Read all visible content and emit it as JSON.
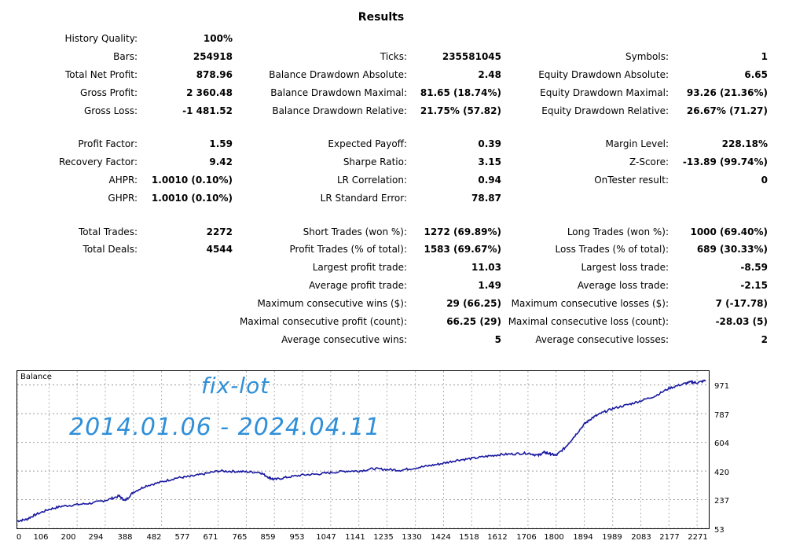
{
  "title": "Results",
  "stats": [
    {
      "label": "History Quality:",
      "value": "100%"
    },
    {
      "label": "Bars:",
      "value": "254918"
    },
    {
      "label": "Total Net Profit:",
      "value": "878.96"
    },
    {
      "label": "Gross Profit:",
      "value": "2 360.48"
    },
    {
      "label": "Gross Loss:",
      "value": "-1 481.52"
    },
    {
      "label": "Profit Factor:",
      "value": "1.59"
    },
    {
      "label": "Recovery Factor:",
      "value": "9.42"
    },
    {
      "label": "AHPR:",
      "value": "1.0010 (0.10%)"
    },
    {
      "label": "GHPR:",
      "value": "1.0010 (0.10%)"
    },
    {
      "label": "Total Trades:",
      "value": "2272"
    },
    {
      "label": "Total Deals:",
      "value": "4544"
    },
    {
      "label": "Ticks:",
      "value": "235581045"
    },
    {
      "label": "Balance Drawdown Absolute:",
      "value": "2.48"
    },
    {
      "label": "Balance Drawdown Maximal:",
      "value": "81.65 (18.74%)"
    },
    {
      "label": "Balance Drawdown Relative:",
      "value": "21.75% (57.82)"
    },
    {
      "label": "Expected Payoff:",
      "value": "0.39"
    },
    {
      "label": "Sharpe Ratio:",
      "value": "3.15"
    },
    {
      "label": "LR Correlation:",
      "value": "0.94"
    },
    {
      "label": "LR Standard Error:",
      "value": "78.87"
    },
    {
      "label": "Short Trades (won %):",
      "value": "1272 (69.89%)"
    },
    {
      "label": "Profit Trades (% of total):",
      "value": "1583 (69.67%)"
    },
    {
      "label": "Largest profit trade:",
      "value": "11.03"
    },
    {
      "label": "Average profit trade:",
      "value": "1.49"
    },
    {
      "label": "Maximum consecutive wins ($):",
      "value": "29 (66.25)"
    },
    {
      "label": "Maximal consecutive profit (count):",
      "value": "66.25 (29)"
    },
    {
      "label": "Average consecutive wins:",
      "value": "5"
    },
    {
      "label": "Symbols:",
      "value": "1"
    },
    {
      "label": "Equity Drawdown Absolute:",
      "value": "6.65"
    },
    {
      "label": "Equity Drawdown Maximal:",
      "value": "93.26 (21.36%)"
    },
    {
      "label": "Equity Drawdown Relative:",
      "value": "26.67% (71.27)"
    },
    {
      "label": "Margin Level:",
      "value": "228.18%"
    },
    {
      "label": "Z-Score:",
      "value": "-13.89 (99.74%)"
    },
    {
      "label": "OnTester result:",
      "value": "0"
    },
    {
      "label": "Long Trades (won %):",
      "value": "1000 (69.40%)"
    },
    {
      "label": "Loss Trades (% of total):",
      "value": "689 (30.33%)"
    },
    {
      "label": "Largest loss trade:",
      "value": "-8.59"
    },
    {
      "label": "Average loss trade:",
      "value": "-2.15"
    },
    {
      "label": "Maximum consecutive losses ($):",
      "value": "7 (-17.78)"
    },
    {
      "label": "Maximal consecutive loss (count):",
      "value": "-28.03 (5)"
    },
    {
      "label": "Average consecutive losses:",
      "value": "2"
    }
  ],
  "annotations": {
    "line1": "fix-lot",
    "line2": "2014.01.06 - 2024.04.11"
  },
  "chart_data": {
    "type": "line",
    "title": "Balance",
    "line_color": "#1a1aa0",
    "grid": true,
    "ylim": [
      53,
      1060
    ],
    "xlim": [
      0,
      2310
    ],
    "yticks": [
      "971",
      "787",
      "604",
      "420",
      "237",
      "53"
    ],
    "ytick_values": [
      971,
      787,
      604,
      420,
      237,
      53
    ],
    "xticks": [
      "0",
      "106",
      "200",
      "294",
      "388",
      "482",
      "577",
      "671",
      "765",
      "859",
      "953",
      "1047",
      "1141",
      "1235",
      "1330",
      "1424",
      "1518",
      "1612",
      "1706",
      "1800",
      "1894",
      "1989",
      "2083",
      "2177",
      "2271"
    ],
    "xtick_values": [
      0,
      106,
      200,
      294,
      388,
      482,
      577,
      671,
      765,
      859,
      953,
      1047,
      1141,
      1235,
      1330,
      1424,
      1518,
      1612,
      1706,
      1800,
      1894,
      1989,
      2083,
      2177,
      2271
    ],
    "series": [
      {
        "x": [
          0,
          30,
          60,
          106,
          150,
          200,
          250,
          300,
          340,
          360,
          388,
          430,
          482,
          530,
          577,
          620,
          671,
          720,
          765,
          810,
          840,
          859,
          900,
          953,
          1000,
          1047,
          1100,
          1141,
          1190,
          1235,
          1280,
          1330,
          1380,
          1424,
          1470,
          1518,
          1570,
          1612,
          1660,
          1706,
          1740,
          1760,
          1780,
          1800,
          1830,
          1860,
          1894,
          1920,
          1950,
          1989,
          2040,
          2083,
          2130,
          2177,
          2220,
          2250,
          2271,
          2300
        ],
        "y": [
          100,
          110,
          140,
          175,
          195,
          205,
          215,
          235,
          260,
          230,
          285,
          325,
          350,
          375,
          385,
          400,
          420,
          418,
          415,
          412,
          380,
          365,
          380,
          395,
          400,
          410,
          420,
          420,
          435,
          430,
          425,
          440,
          455,
          470,
          490,
          500,
          515,
          525,
          530,
          535,
          520,
          540,
          530,
          520,
          570,
          640,
          720,
          760,
          790,
          820,
          845,
          870,
          900,
          950,
          975,
          990,
          985,
          1000
        ]
      }
    ]
  }
}
